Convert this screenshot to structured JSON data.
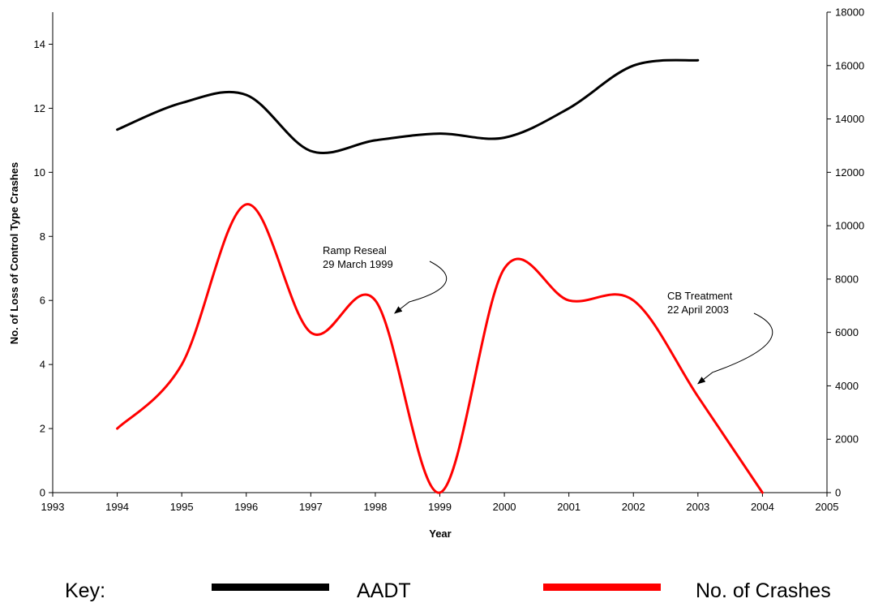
{
  "chart_data": {
    "type": "line",
    "xlabel": "Year",
    "ylabel": "No. of Loss of Control Type Crashes",
    "y2label": "",
    "xlim": [
      1993,
      2005
    ],
    "ylim": [
      0,
      15
    ],
    "y2lim": [
      0,
      18000
    ],
    "x_ticks": [
      "1993",
      "1994",
      "1995",
      "1996",
      "1997",
      "1998",
      "1999",
      "2000",
      "2001",
      "2002",
      "2003",
      "2004",
      "2005"
    ],
    "y_ticks": [
      "0",
      "2",
      "4",
      "6",
      "8",
      "10",
      "12",
      "14"
    ],
    "y2_ticks": [
      "0",
      "2000",
      "4000",
      "6000",
      "8000",
      "10000",
      "12000",
      "14000",
      "16000",
      "18000"
    ],
    "grid": false,
    "smooth": true,
    "series": [
      {
        "name": "AADT",
        "axis": "right",
        "color": "#000000",
        "x": [
          1994,
          1995,
          1996,
          1997,
          1998,
          1999,
          2000,
          2001,
          2002,
          2003
        ],
        "values": [
          13600,
          14600,
          14900,
          12800,
          13200,
          13450,
          13300,
          14400,
          16000,
          16200
        ]
      },
      {
        "name": "No. of Crashes",
        "axis": "left",
        "color": "#ff0000",
        "x": [
          1994,
          1995,
          1996,
          1997,
          1998,
          1999,
          2000,
          2001,
          2002,
          2003,
          2004
        ],
        "values": [
          2,
          4,
          9,
          5,
          6,
          0,
          7,
          6,
          6,
          3,
          0
        ]
      }
    ],
    "annotations": [
      {
        "lines": [
          "Ramp Reseal",
          "29 March 1999"
        ],
        "target_x": 1998.3,
        "target_y": 5.6
      },
      {
        "lines": [
          "CB Treatment",
          "22 April 2003"
        ],
        "target_x": 2003.0,
        "target_y": 3.4
      }
    ]
  },
  "key": {
    "label": "Key:",
    "items": [
      {
        "label": "AADT",
        "color": "#000000"
      },
      {
        "label": "No. of Crashes",
        "color": "#ff0000"
      }
    ]
  }
}
